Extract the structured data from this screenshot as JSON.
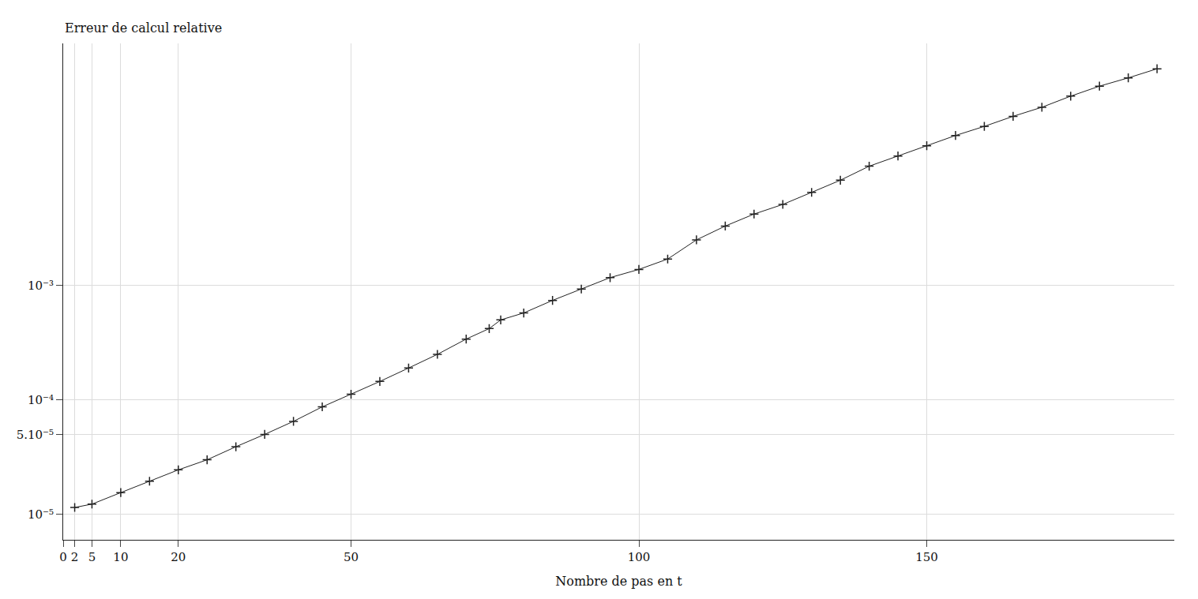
{
  "chart_data": {
    "type": "scatter",
    "y_label": "Erreur de calcul relative",
    "x_label": "Nombre de pas en t",
    "x": [
      2,
      5,
      10,
      15,
      20,
      25,
      30,
      35,
      40,
      45,
      50,
      55,
      60,
      65,
      70,
      74,
      76,
      80,
      85,
      90,
      95,
      100,
      105,
      110,
      115,
      120,
      125,
      130,
      135,
      140,
      145,
      150,
      155,
      160,
      165,
      170,
      175,
      180,
      185,
      190
    ],
    "values": [
      1.15e-05,
      1.23e-05,
      1.55e-05,
      1.95e-05,
      2.45e-05,
      3e-05,
      3.9e-05,
      5e-05,
      6.5e-05,
      8.7e-05,
      0.000112,
      0.000145,
      0.00019,
      0.00025,
      0.00034,
      0.00042,
      0.0005,
      0.000575,
      0.00074,
      0.00093,
      0.00117,
      0.00138,
      0.0017,
      0.0025,
      0.0033,
      0.0042,
      0.0051,
      0.0065,
      0.0083,
      0.011,
      0.0135,
      0.0166,
      0.0204,
      0.0245,
      0.03,
      0.036,
      0.045,
      0.055,
      0.065,
      0.078
    ],
    "color": "#222222",
    "marker": "cross",
    "log": "y",
    "grid": true,
    "xlim": [
      0,
      193
    ],
    "xticks": [
      0,
      2,
      5,
      10,
      20,
      50,
      100,
      150
    ],
    "ylim": [
      6e-06,
      0.13
    ],
    "yticks": [
      {
        "value": 1e-05,
        "label": "10⁻⁵"
      },
      {
        "value": 5e-05,
        "label": "5.10⁻⁵"
      },
      {
        "value": 0.0001,
        "label": "10⁻⁴"
      },
      {
        "value": 0.001,
        "label": "10⁻³"
      }
    ]
  }
}
